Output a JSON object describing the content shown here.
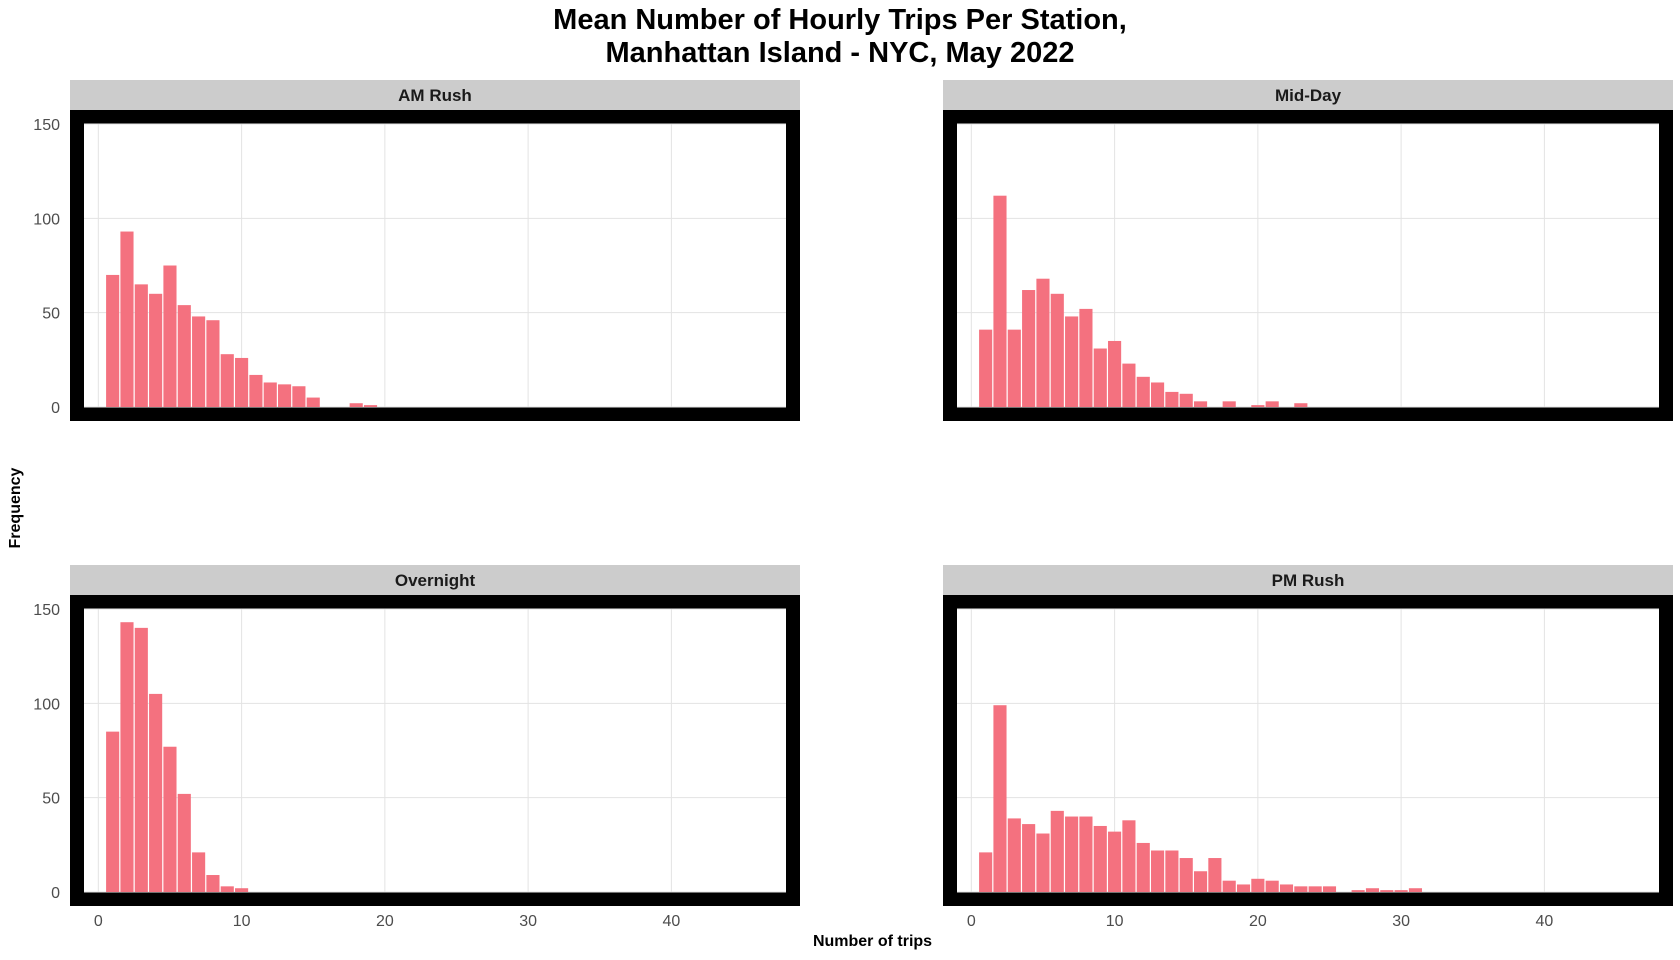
{
  "chart_data": {
    "type": "bar",
    "title_lines": [
      "Mean Number of Hourly Trips Per Station,",
      "Manhattan Island - NYC, May 2022"
    ],
    "xlabel": "Number of trips",
    "ylabel": "Frequency",
    "xlim": [
      -1,
      48
    ],
    "ylim": [
      0,
      150
    ],
    "x_ticks": [
      0,
      10,
      20,
      30,
      40
    ],
    "y_ticks": [
      0,
      50,
      100,
      150
    ],
    "bin_width": 1,
    "bar_color": "#F4717F",
    "strip_color": "#CCCCCC",
    "panel_border_color": "#000000",
    "grid": true,
    "panels": [
      {
        "name": "AM Rush",
        "bins": [
          {
            "x": 1,
            "count": 70
          },
          {
            "x": 2,
            "count": 93
          },
          {
            "x": 3,
            "count": 65
          },
          {
            "x": 4,
            "count": 60
          },
          {
            "x": 5,
            "count": 75
          },
          {
            "x": 6,
            "count": 54
          },
          {
            "x": 7,
            "count": 48
          },
          {
            "x": 8,
            "count": 46
          },
          {
            "x": 9,
            "count": 28
          },
          {
            "x": 10,
            "count": 26
          },
          {
            "x": 11,
            "count": 17
          },
          {
            "x": 12,
            "count": 13
          },
          {
            "x": 13,
            "count": 12
          },
          {
            "x": 14,
            "count": 11
          },
          {
            "x": 15,
            "count": 5
          },
          {
            "x": 18,
            "count": 2
          },
          {
            "x": 19,
            "count": 1
          }
        ]
      },
      {
        "name": "Mid-Day",
        "bins": [
          {
            "x": 1,
            "count": 41
          },
          {
            "x": 2,
            "count": 112
          },
          {
            "x": 3,
            "count": 41
          },
          {
            "x": 4,
            "count": 62
          },
          {
            "x": 5,
            "count": 68
          },
          {
            "x": 6,
            "count": 60
          },
          {
            "x": 7,
            "count": 48
          },
          {
            "x": 8,
            "count": 52
          },
          {
            "x": 9,
            "count": 31
          },
          {
            "x": 10,
            "count": 35
          },
          {
            "x": 11,
            "count": 23
          },
          {
            "x": 12,
            "count": 16
          },
          {
            "x": 13,
            "count": 13
          },
          {
            "x": 14,
            "count": 8
          },
          {
            "x": 15,
            "count": 7
          },
          {
            "x": 16,
            "count": 3
          },
          {
            "x": 18,
            "count": 3
          },
          {
            "x": 20,
            "count": 1
          },
          {
            "x": 21,
            "count": 3
          },
          {
            "x": 23,
            "count": 2
          }
        ]
      },
      {
        "name": "Overnight",
        "bins": [
          {
            "x": 1,
            "count": 85
          },
          {
            "x": 2,
            "count": 143
          },
          {
            "x": 3,
            "count": 140
          },
          {
            "x": 4,
            "count": 105
          },
          {
            "x": 5,
            "count": 77
          },
          {
            "x": 6,
            "count": 52
          },
          {
            "x": 7,
            "count": 21
          },
          {
            "x": 8,
            "count": 9
          },
          {
            "x": 9,
            "count": 3
          },
          {
            "x": 10,
            "count": 2
          }
        ]
      },
      {
        "name": "PM Rush",
        "bins": [
          {
            "x": 1,
            "count": 21
          },
          {
            "x": 2,
            "count": 99
          },
          {
            "x": 3,
            "count": 39
          },
          {
            "x": 4,
            "count": 36
          },
          {
            "x": 5,
            "count": 31
          },
          {
            "x": 6,
            "count": 43
          },
          {
            "x": 7,
            "count": 40
          },
          {
            "x": 8,
            "count": 40
          },
          {
            "x": 9,
            "count": 35
          },
          {
            "x": 10,
            "count": 32
          },
          {
            "x": 11,
            "count": 38
          },
          {
            "x": 12,
            "count": 26
          },
          {
            "x": 13,
            "count": 22
          },
          {
            "x": 14,
            "count": 22
          },
          {
            "x": 15,
            "count": 18
          },
          {
            "x": 16,
            "count": 11
          },
          {
            "x": 17,
            "count": 18
          },
          {
            "x": 18,
            "count": 6
          },
          {
            "x": 19,
            "count": 4
          },
          {
            "x": 20,
            "count": 7
          },
          {
            "x": 21,
            "count": 6
          },
          {
            "x": 22,
            "count": 4
          },
          {
            "x": 23,
            "count": 3
          },
          {
            "x": 24,
            "count": 3
          },
          {
            "x": 25,
            "count": 3
          },
          {
            "x": 27,
            "count": 1
          },
          {
            "x": 28,
            "count": 2
          },
          {
            "x": 29,
            "count": 1
          },
          {
            "x": 30,
            "count": 1
          },
          {
            "x": 31,
            "count": 2
          }
        ]
      }
    ]
  }
}
